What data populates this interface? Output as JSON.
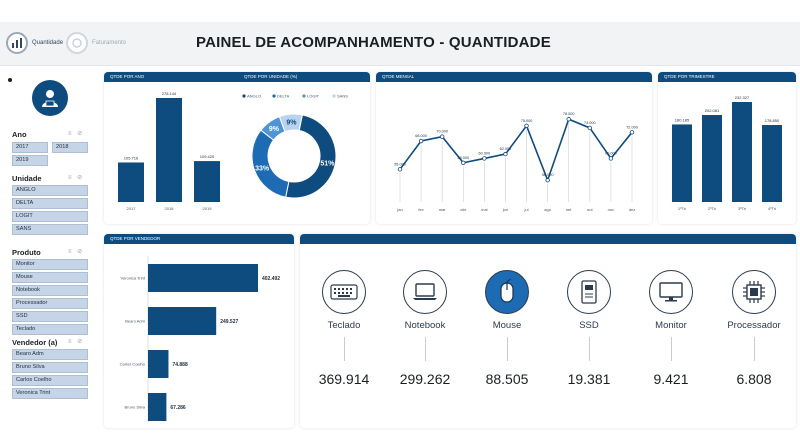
{
  "header": {
    "title": "PAINEL DE ACOMPANHAMENTO - QUANTIDADE",
    "tabs": [
      {
        "label": "Quantidade"
      },
      {
        "label": "Faturamento"
      }
    ]
  },
  "filters": {
    "ano": {
      "title": "Ano",
      "items": [
        "2017",
        "2018",
        "2019"
      ]
    },
    "unidade": {
      "title": "Unidade",
      "items": [
        "ANGLO",
        "DELTA",
        "LOGIT",
        "SANS"
      ]
    },
    "produto": {
      "title": "Produto",
      "items": [
        "Monitor",
        "Mouse",
        "Notebook",
        "Processador",
        "SSD",
        "Teclado"
      ]
    },
    "vendedor": {
      "title": "Vendedor (a)",
      "items": [
        "Bearo Adm",
        "Bruno Silva",
        "Carlos Coelho",
        "Veronica Trint"
      ]
    }
  },
  "panels": {
    "ano": "QTDE POR ANO",
    "unidade": "QTDE POR UNIDADE (%)",
    "mensal": "QTDE MENSAL",
    "trimestre": "QTDE POR TRIMESTRE",
    "vendedor": "QTDE POR VENDEDOR"
  },
  "products": [
    {
      "name": "Teclado",
      "value": "369.914",
      "icon": "keyboard-icon"
    },
    {
      "name": "Notebook",
      "value": "299.262",
      "icon": "laptop-icon"
    },
    {
      "name": "Mouse",
      "value": "88.505",
      "icon": "mouse-icon"
    },
    {
      "name": "SSD",
      "value": "19.381",
      "icon": "ssd-icon"
    },
    {
      "name": "Monitor",
      "value": "9.421",
      "icon": "monitor-icon"
    },
    {
      "name": "Processador",
      "value": "6.808",
      "icon": "processor-icon"
    }
  ],
  "colors": {
    "primary": "#0e4b7e",
    "chip": "#c5d4e6",
    "donut": [
      "#0e4b7e",
      "#1d6bb3",
      "#4f95d6",
      "#b9d3ee"
    ]
  },
  "chart_data": [
    {
      "type": "bar",
      "title": "QTDE POR ANO",
      "categories": [
        "2017",
        "2018",
        "2019"
      ],
      "values": [
        105.716,
        278.144,
        109.42
      ],
      "value_labels": [
        "105.716",
        "278.144",
        "109.420"
      ]
    },
    {
      "type": "pie",
      "title": "QTDE POR UNIDADE (%)",
      "categories": [
        "ANGLO",
        "DELTA",
        "LOGIT",
        "SANS"
      ],
      "values": [
        51,
        33,
        9,
        9
      ],
      "value_labels": [
        "51%",
        "33%",
        "9%",
        "9%"
      ]
    },
    {
      "type": "line",
      "title": "QTDE MENSAL",
      "categories": [
        "jan",
        "fev",
        "mar",
        "abr",
        "mai",
        "jun",
        "jul",
        "ago",
        "set",
        "out",
        "nov",
        "dez"
      ],
      "values": [
        55,
        68,
        70,
        58,
        60,
        62,
        75,
        50,
        78,
        74,
        60,
        72
      ],
      "value_labels": [
        "55.000",
        "68.000",
        "70.000",
        "58.000",
        "60.000",
        "62.000",
        "75.000",
        "50.000",
        "78.000",
        "74.000",
        "60.000",
        "72.000"
      ]
    },
    {
      "type": "bar",
      "title": "QTDE POR TRIMESTRE",
      "categories": [
        "1ºTri",
        "2ºTri",
        "3ºTri",
        "4ºTri"
      ],
      "values": [
        180.185,
        202.081,
        232.327,
        178.85
      ],
      "value_labels": [
        "180.185",
        "202.081",
        "232.327",
        "178.850"
      ]
    },
    {
      "type": "bar",
      "orientation": "horizontal",
      "title": "QTDE POR VENDEDOR",
      "categories": [
        "Veronica Trint",
        "Bearo Adm",
        "Carlos Coelho",
        "Bruno Silva"
      ],
      "values": [
        402.492,
        249.527,
        74.888,
        67.286
      ],
      "value_labels": [
        "402.492",
        "249.527",
        "74.888",
        "67.286"
      ]
    }
  ]
}
